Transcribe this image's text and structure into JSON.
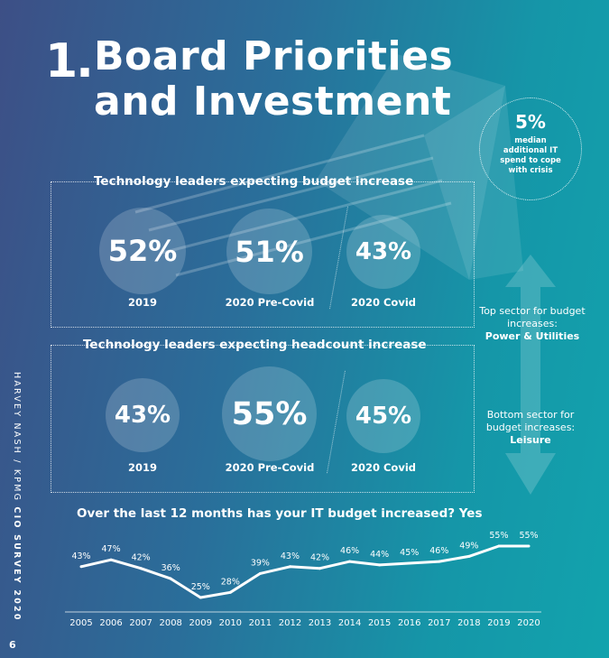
{
  "title": {
    "number": "1.",
    "line1": "Board Priorities",
    "line2": "and Investment"
  },
  "median": {
    "value": "5%",
    "text": "median additional IT spend to cope with crisis"
  },
  "budget": {
    "title": "Technology leaders expecting budget increase",
    "items": [
      {
        "value": "52%",
        "label": "2019"
      },
      {
        "value": "51%",
        "label": "2020 Pre-Covid"
      },
      {
        "value": "43%",
        "label": "2020 Covid"
      }
    ]
  },
  "headcount": {
    "title": "Technology leaders expecting headcount increase",
    "items": [
      {
        "value": "43%",
        "label": "2019"
      },
      {
        "value": "55%",
        "label": "2020 Pre-Covid"
      },
      {
        "value": "45%",
        "label": "2020 Covid"
      }
    ]
  },
  "sector": {
    "top_text": "Top sector for budget increases:",
    "top_name": "Power & Utilities",
    "bottom_text": "Bottom sector for budget increases:",
    "bottom_name": "Leisure"
  },
  "side_text": {
    "normal": "HARVEY NASH / KPMG ",
    "bold": "CIO SURVEY 2020"
  },
  "page_number": "6",
  "chart_data": {
    "type": "line",
    "title": "Over the last 12 months has your IT budget increased? Yes",
    "x": [
      "2005",
      "2006",
      "2007",
      "2008",
      "2009",
      "2010",
      "2011",
      "2012",
      "2013",
      "2014",
      "2015",
      "2016",
      "2017",
      "2018",
      "2019",
      "2020"
    ],
    "values": [
      43,
      47,
      42,
      36,
      25,
      28,
      39,
      43,
      42,
      46,
      44,
      45,
      46,
      49,
      55,
      55
    ],
    "data_labels": [
      "43%",
      "47%",
      "42%",
      "36%",
      "25%",
      "28%",
      "39%",
      "43%",
      "42%",
      "46%",
      "44%",
      "45%",
      "46%",
      "49%",
      "55%",
      "55%"
    ]
  }
}
